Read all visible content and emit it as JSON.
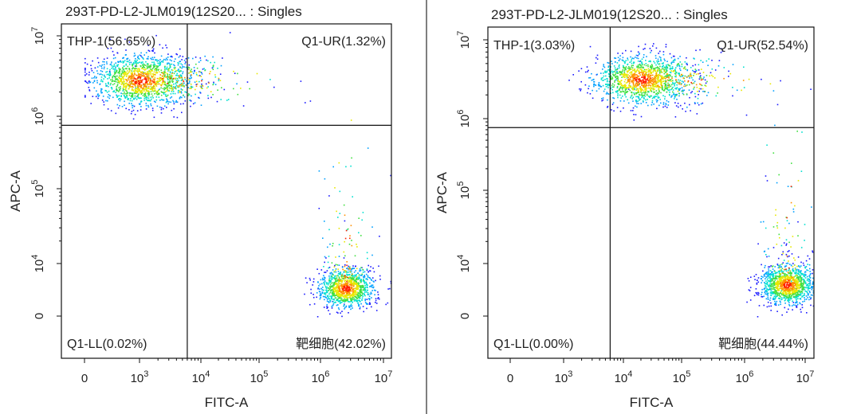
{
  "chart_data": [
    {
      "type": "scatter",
      "title": "293T-PD-L2-JLM019(12S20... : Singles",
      "xlabel": "FITC-A",
      "ylabel": "APC-A",
      "x_ticks": [
        {
          "label": "0",
          "exp": ""
        },
        {
          "label": "10",
          "exp": "3"
        },
        {
          "label": "10",
          "exp": "4"
        },
        {
          "label": "10",
          "exp": "5"
        },
        {
          "label": "10",
          "exp": "6"
        },
        {
          "label": "10",
          "exp": "7"
        }
      ],
      "y_ticks": [
        {
          "label": "0",
          "exp": ""
        },
        {
          "label": "10",
          "exp": "4"
        },
        {
          "label": "10",
          "exp": "5"
        },
        {
          "label": "10",
          "exp": "6"
        },
        {
          "label": "10",
          "exp": "7"
        }
      ],
      "gate": {
        "x": 6000,
        "y": 750000
      },
      "quadrants": {
        "upper_left": "THP-1(56.65%)",
        "upper_right": "Q1-UR(1.32%)",
        "lower_left": "Q1-LL(0.02%)",
        "lower_right": "靶细胞(42.02%)"
      },
      "populations": [
        {
          "name": "THP-1",
          "center_log_x": 3.0,
          "center_log_y": 6.45,
          "percent": 56.65
        },
        {
          "name": "靶细胞",
          "center_log_x": 6.4,
          "center_log_y": 3.3,
          "percent": 42.02
        }
      ]
    },
    {
      "type": "scatter",
      "title": "293T-PD-L2-JLM019(12S20... : Singles",
      "xlabel": "FITC-A",
      "ylabel": "APC-A",
      "x_ticks": [
        {
          "label": "0",
          "exp": ""
        },
        {
          "label": "10",
          "exp": "3"
        },
        {
          "label": "10",
          "exp": "4"
        },
        {
          "label": "10",
          "exp": "5"
        },
        {
          "label": "10",
          "exp": "6"
        },
        {
          "label": "10",
          "exp": "7"
        }
      ],
      "y_ticks": [
        {
          "label": "0",
          "exp": ""
        },
        {
          "label": "10",
          "exp": "4"
        },
        {
          "label": "10",
          "exp": "5"
        },
        {
          "label": "10",
          "exp": "6"
        },
        {
          "label": "10",
          "exp": "7"
        }
      ],
      "gate": {
        "x": 6000,
        "y": 750000
      },
      "quadrants": {
        "upper_left": "THP-1(3.03%)",
        "upper_right": "Q1-UR(52.54%)",
        "lower_left": "Q1-LL(0.00%)",
        "lower_right": "靶细胞(44.44%)"
      },
      "populations": [
        {
          "name": "Q1-UR",
          "center_log_x": 4.3,
          "center_log_y": 6.5,
          "percent": 52.54
        },
        {
          "name": "靶细胞",
          "center_log_x": 6.7,
          "center_log_y": 3.4,
          "percent": 44.44
        }
      ]
    }
  ],
  "colors": {
    "density": [
      "#1a1aff",
      "#00a0ff",
      "#00e0d0",
      "#40e040",
      "#e8e800",
      "#ff9000",
      "#ff2000"
    ],
    "frame": "#111111",
    "divider": "#555555"
  }
}
